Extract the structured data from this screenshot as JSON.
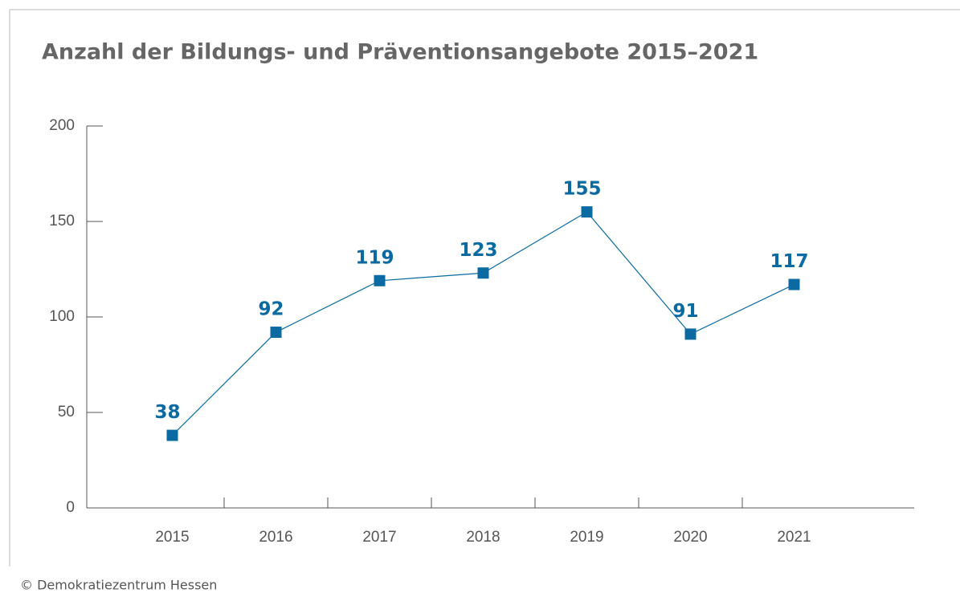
{
  "chart_data": {
    "type": "line",
    "title": "Anzahl der Bildungs- und Präventionsangebote 2015–2021",
    "categories": [
      "2015",
      "2016",
      "2017",
      "2018",
      "2019",
      "2020",
      "2021"
    ],
    "values": [
      38,
      92,
      119,
      123,
      155,
      91,
      117
    ],
    "color": "#0a6aa1",
    "ylim": [
      0,
      200
    ],
    "yticks": [
      0,
      50,
      100,
      150,
      200
    ],
    "source": "© Demokratiezentrum Hessen"
  }
}
